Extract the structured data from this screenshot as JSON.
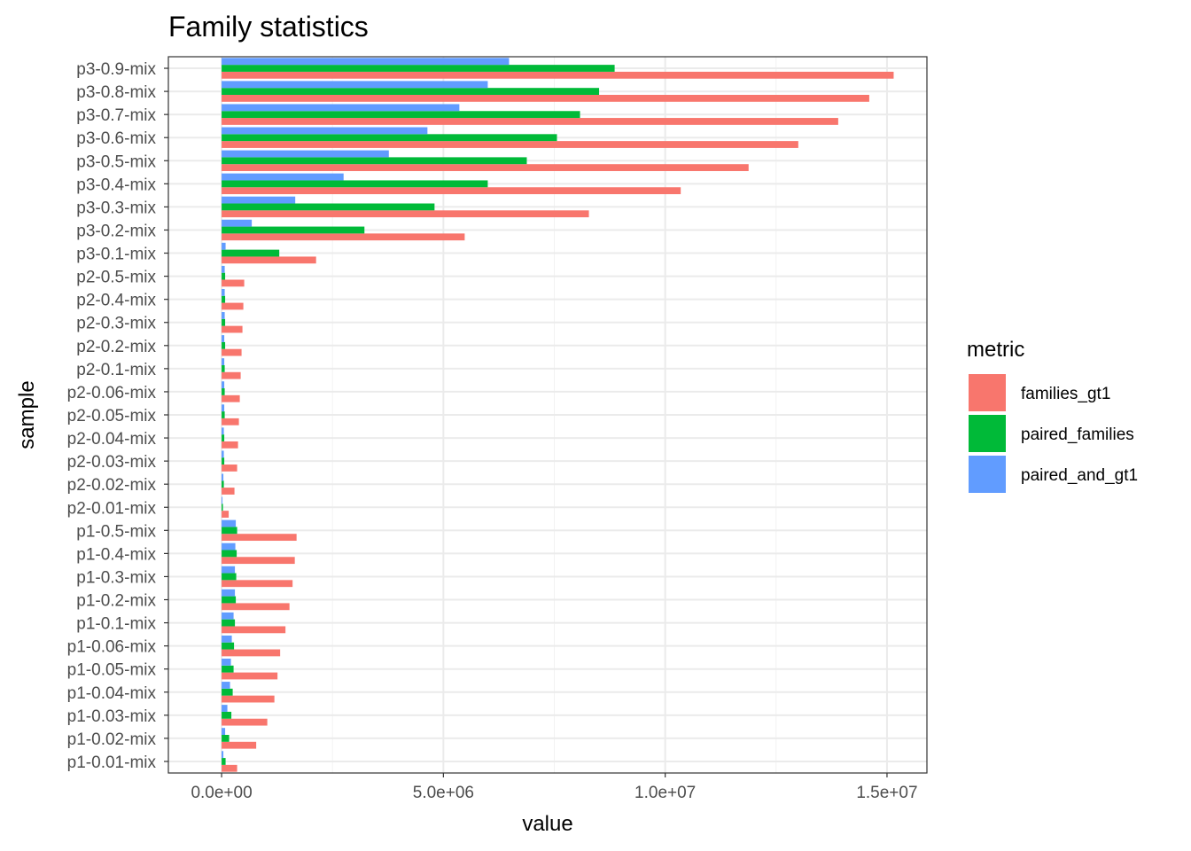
{
  "chart_data": {
    "type": "bar",
    "orientation": "horizontal",
    "title": "Family statistics",
    "xlabel": "value",
    "ylabel": "sample",
    "xlim": [
      -1200000,
      15900000
    ],
    "xticks": [
      0,
      5000000,
      10000000,
      15000000
    ],
    "xtick_labels": [
      "0.0e+00",
      "5.0e+06",
      "1.0e+07",
      "1.5e+07"
    ],
    "grid": true,
    "legend": {
      "title": "metric",
      "position": "right"
    },
    "categories": [
      "p3-0.9-mix",
      "p3-0.8-mix",
      "p3-0.7-mix",
      "p3-0.6-mix",
      "p3-0.5-mix",
      "p3-0.4-mix",
      "p3-0.3-mix",
      "p3-0.2-mix",
      "p3-0.1-mix",
      "p2-0.5-mix",
      "p2-0.4-mix",
      "p2-0.3-mix",
      "p2-0.2-mix",
      "p2-0.1-mix",
      "p2-0.06-mix",
      "p2-0.05-mix",
      "p2-0.04-mix",
      "p2-0.03-mix",
      "p2-0.02-mix",
      "p2-0.01-mix",
      "p1-0.5-mix",
      "p1-0.4-mix",
      "p1-0.3-mix",
      "p1-0.2-mix",
      "p1-0.1-mix",
      "p1-0.06-mix",
      "p1-0.05-mix",
      "p1-0.04-mix",
      "p1-0.03-mix",
      "p1-0.02-mix",
      "p1-0.01-mix"
    ],
    "series": [
      {
        "name": "families_gt1",
        "color": "#F8766D",
        "values": [
          15150000,
          14600000,
          13900000,
          13000000,
          11880000,
          10350000,
          8280000,
          5480000,
          2130000,
          510000,
          490000,
          470000,
          450000,
          430000,
          410000,
          390000,
          370000,
          350000,
          290000,
          160000,
          1690000,
          1650000,
          1600000,
          1530000,
          1440000,
          1320000,
          1260000,
          1190000,
          1030000,
          780000,
          350000
        ]
      },
      {
        "name": "paired_families",
        "color": "#00BA38",
        "values": [
          8860000,
          8510000,
          8080000,
          7560000,
          6880000,
          6000000,
          4800000,
          3220000,
          1300000,
          80000,
          80000,
          80000,
          80000,
          70000,
          70000,
          70000,
          60000,
          60000,
          50000,
          30000,
          350000,
          340000,
          330000,
          320000,
          300000,
          280000,
          270000,
          250000,
          220000,
          170000,
          90000
        ]
      },
      {
        "name": "paired_and_gt1",
        "color": "#619CFF",
        "values": [
          6480000,
          6000000,
          5360000,
          4640000,
          3770000,
          2750000,
          1660000,
          680000,
          90000,
          70000,
          70000,
          70000,
          60000,
          60000,
          60000,
          60000,
          50000,
          50000,
          40000,
          20000,
          320000,
          310000,
          300000,
          300000,
          270000,
          230000,
          210000,
          190000,
          130000,
          80000,
          40000
        ]
      }
    ]
  }
}
